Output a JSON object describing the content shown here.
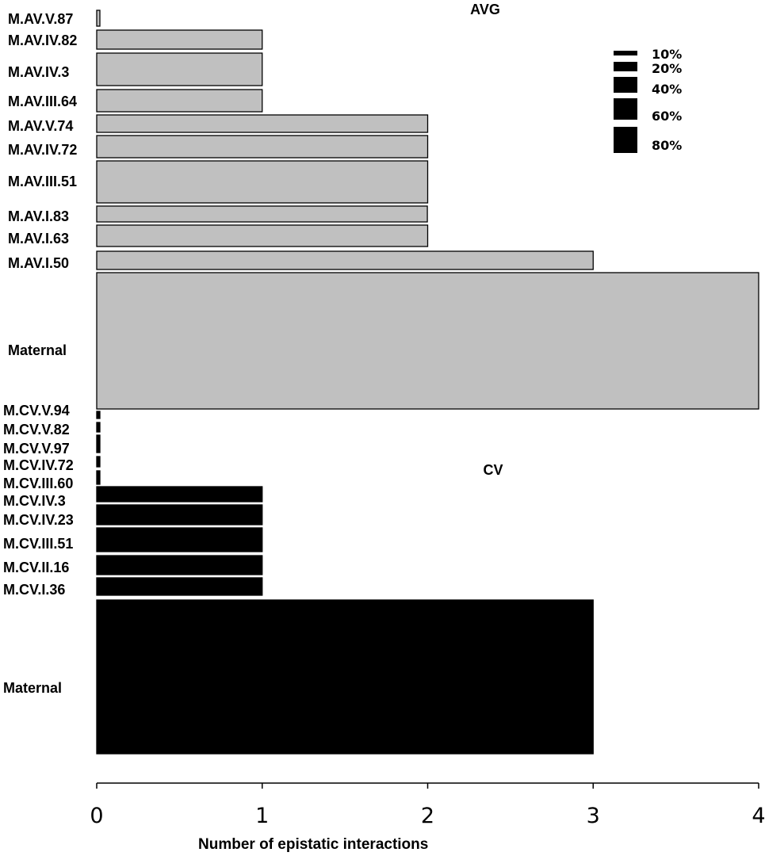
{
  "chart_data": {
    "type": "bar",
    "orientation": "horizontal",
    "xlabel": "Number of  epistatic interactions",
    "xlim": [
      0,
      4
    ],
    "xticks": [
      "0",
      "1",
      "2",
      "3",
      "4"
    ],
    "bar_thickness_legend": {
      "labels": [
        "10%",
        "20%",
        "40%",
        "60%",
        "80%"
      ],
      "values": [
        10,
        20,
        40,
        60,
        80
      ]
    },
    "panels": [
      {
        "title": "AVG",
        "color": "#c0c0c0",
        "categories": [
          "M.AV.V.87",
          "M.AV.IV.82",
          "M.AV.IV.3",
          "M.AV.III.64",
          "M.AV.V.74",
          "M.AV.IV.72",
          "M.AV.III.51",
          "M.AV.I.83",
          "M.AV.I.63",
          "M.AV.I.50",
          "Maternal"
        ],
        "values": [
          0,
          1,
          1,
          1,
          2,
          2,
          2,
          1.998,
          2,
          3,
          4
        ],
        "thickness_pct": [
          3,
          4,
          7,
          5,
          4,
          5,
          9,
          3,
          4,
          3,
          30
        ]
      },
      {
        "title": "CV",
        "color": "#000000",
        "categories": [
          "M.CV.V.94",
          "M.CV.V.82",
          "M.CV.V.97",
          "M.CV.IV.72",
          "M.CV.III.60",
          "M.CV.IV.3",
          "M.CV.IV.23",
          "M.CV.III.51",
          "M.CV.II.16",
          "M.CV.I.36",
          "Maternal"
        ],
        "values": [
          0,
          0,
          0,
          0,
          0,
          1,
          1,
          1,
          1,
          1,
          3
        ],
        "thickness_pct": [
          1,
          2,
          3,
          2,
          2,
          4,
          4,
          5,
          4,
          4,
          34
        ]
      }
    ]
  }
}
